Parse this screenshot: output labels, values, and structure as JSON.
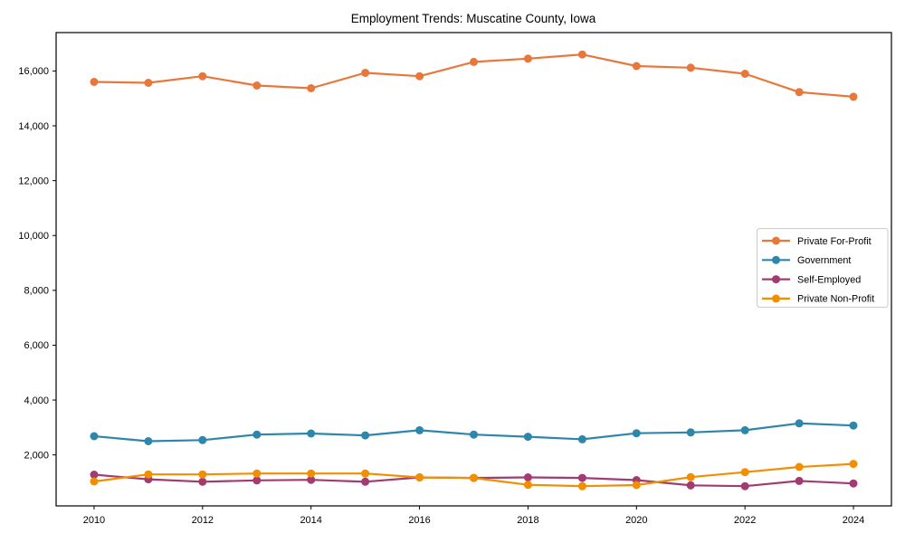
{
  "chart_data": {
    "type": "line",
    "title": "Employment Trends: Muscatine County, Iowa",
    "xlabel": "",
    "ylabel": "",
    "x": [
      2010,
      2011,
      2012,
      2013,
      2014,
      2015,
      2016,
      2017,
      2018,
      2019,
      2020,
      2021,
      2022,
      2023,
      2024
    ],
    "series": [
      {
        "name": "Private For-Profit",
        "color": "#E8773C",
        "values": [
          15600,
          15570,
          15810,
          15470,
          15370,
          15930,
          15810,
          16330,
          16450,
          16600,
          16180,
          16120,
          15900,
          15230,
          15060
        ]
      },
      {
        "name": "Government",
        "color": "#2E86AB",
        "values": [
          2680,
          2500,
          2540,
          2740,
          2780,
          2710,
          2900,
          2740,
          2660,
          2570,
          2790,
          2820,
          2900,
          3150,
          3070
        ]
      },
      {
        "name": "Self-Employed",
        "color": "#A23B72",
        "values": [
          1280,
          1110,
          1020,
          1070,
          1090,
          1020,
          1180,
          1160,
          1180,
          1160,
          1080,
          890,
          860,
          1050,
          960
        ]
      },
      {
        "name": "Private Non-Profit",
        "color": "#F18F01",
        "values": [
          1030,
          1290,
          1290,
          1320,
          1320,
          1320,
          1180,
          1160,
          910,
          860,
          900,
          1190,
          1370,
          1560,
          1670
        ]
      }
    ],
    "xlim": [
      2009.3,
      2024.7
    ],
    "ylim": [
      140,
      17400
    ],
    "x_ticks": [
      2010,
      2012,
      2014,
      2016,
      2018,
      2020,
      2022,
      2024
    ],
    "y_ticks": [
      2000,
      4000,
      6000,
      8000,
      10000,
      12000,
      14000,
      16000
    ],
    "y_tick_labels": [
      "2,000",
      "4,000",
      "6,000",
      "8,000",
      "10,000",
      "12,000",
      "14,000",
      "16,000"
    ],
    "grid": false,
    "legend_position": "center-right",
    "marker": "circle",
    "styles": {
      "axis_color": "#000000",
      "legend_border_color": "#cccccc",
      "legend_background": "#ffffff",
      "plot_background": "#ffffff"
    }
  }
}
